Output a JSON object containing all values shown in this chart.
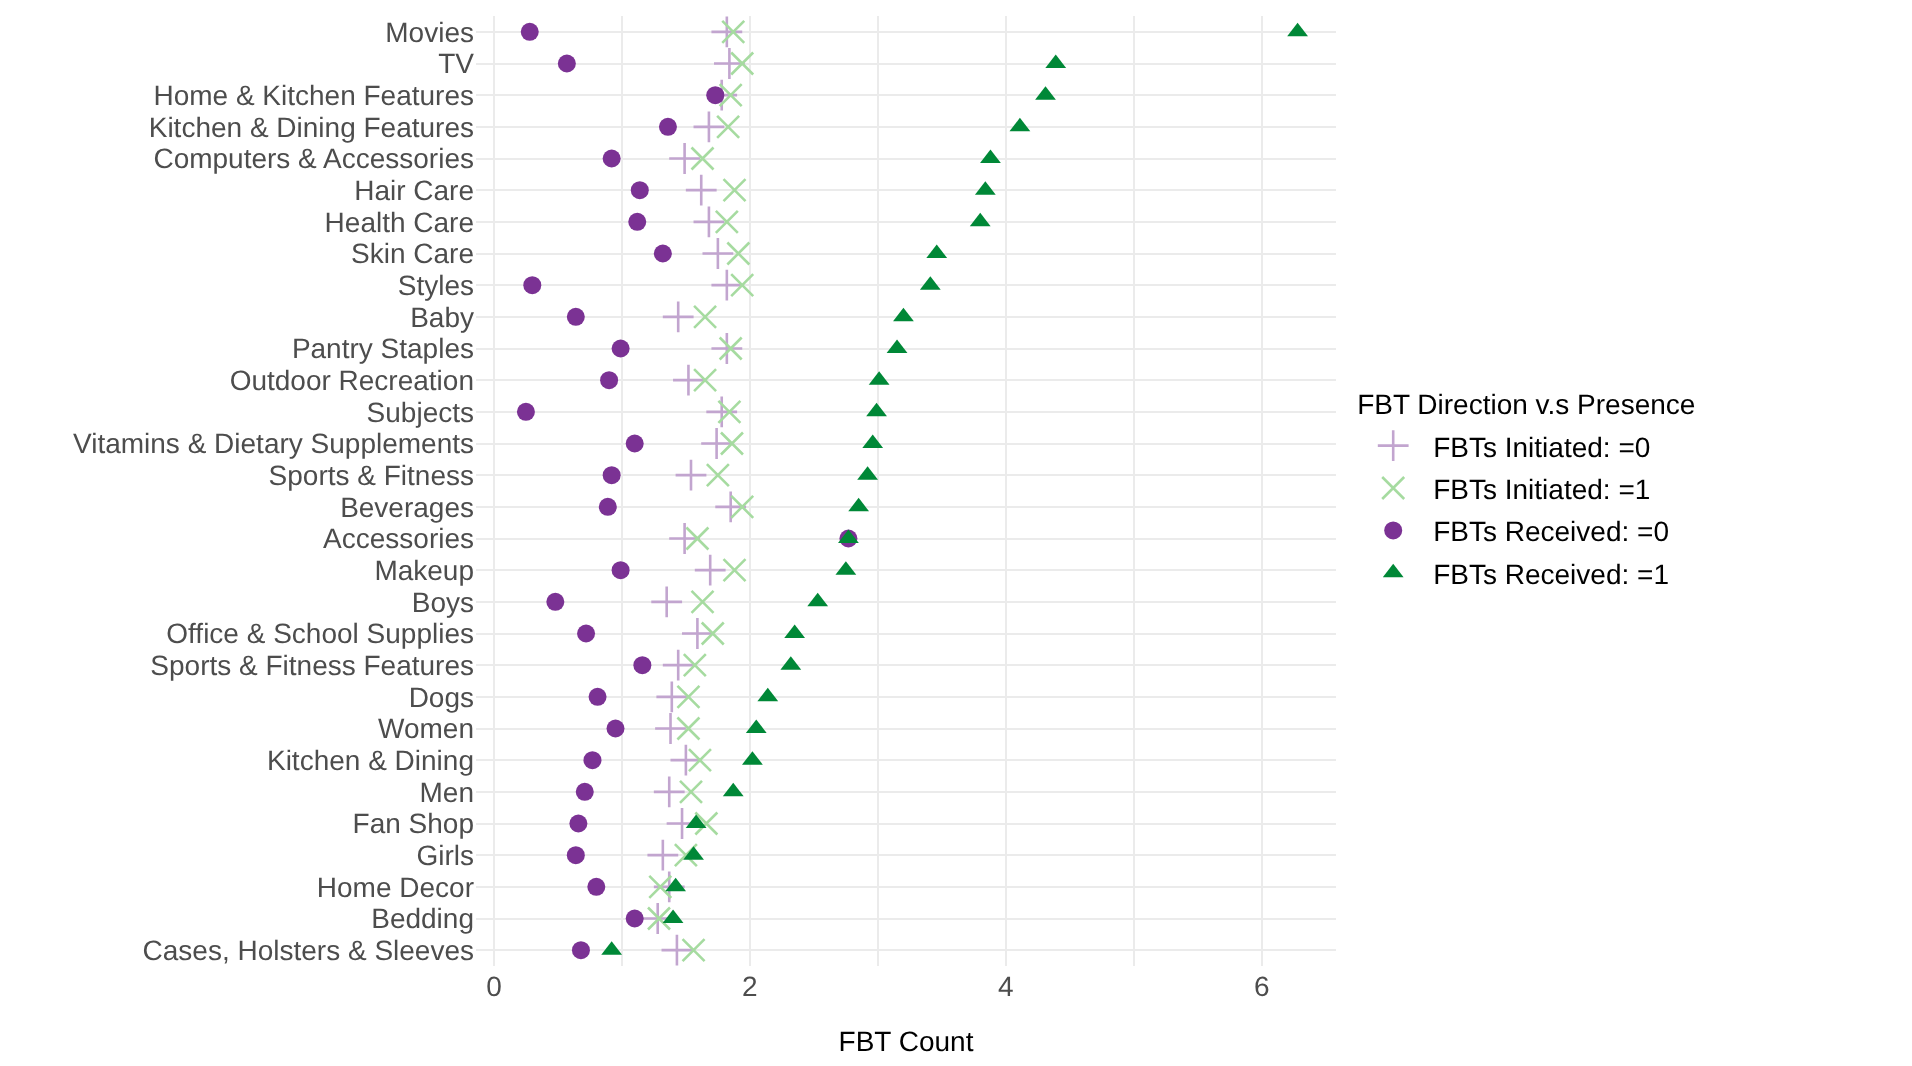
{
  "chart_data": {
    "type": "scatter",
    "xlabel": "FBT Count",
    "legend_title": "FBT Direction v.s Presence",
    "categories": [
      "Movies",
      "TV",
      "Home & Kitchen Features",
      "Kitchen & Dining Features",
      "Computers & Accessories",
      "Hair Care",
      "Health Care",
      "Skin Care",
      "Styles",
      "Baby",
      "Pantry Staples",
      "Outdoor Recreation",
      "Subjects",
      "Vitamins & Dietary Supplements",
      "Sports & Fitness",
      "Beverages",
      "Accessories",
      "Makeup",
      "Boys",
      "Office & School Supplies",
      "Sports & Fitness Features",
      "Dogs",
      "Women",
      "Kitchen & Dining",
      "Men",
      "Fan Shop",
      "Girls",
      "Home Decor",
      "Bedding",
      "Cases, Holsters & Sleeves"
    ],
    "orientation": "horizontal",
    "series": [
      {
        "name": "FBTs Initiated: =0",
        "color": "#c2a5cf",
        "marker": "cross",
        "values": [
          1.82,
          1.84,
          1.78,
          1.68,
          1.49,
          1.62,
          1.68,
          1.75,
          1.82,
          1.44,
          1.82,
          1.52,
          1.78,
          1.74,
          1.54,
          1.85,
          1.49,
          1.69,
          1.35,
          1.59,
          1.44,
          1.39,
          1.38,
          1.5,
          1.37,
          1.47,
          1.32,
          1.37,
          1.28,
          1.43
        ]
      },
      {
        "name": "FBTs Initiated: =1",
        "color": "#a6dba0",
        "marker": "x",
        "values": [
          1.87,
          1.94,
          1.85,
          1.83,
          1.63,
          1.88,
          1.82,
          1.91,
          1.94,
          1.65,
          1.85,
          1.65,
          1.84,
          1.86,
          1.75,
          1.94,
          1.59,
          1.88,
          1.63,
          1.71,
          1.57,
          1.52,
          1.52,
          1.61,
          1.54,
          1.66,
          1.5,
          1.3,
          1.29,
          1.56
        ]
      },
      {
        "name": "FBTs Received: =0",
        "color": "#7b3294",
        "marker": "circle",
        "values": [
          0.28,
          0.57,
          1.73,
          1.36,
          0.92,
          1.14,
          1.12,
          1.32,
          0.3,
          0.64,
          0.99,
          0.9,
          0.25,
          1.1,
          0.92,
          0.89,
          2.77,
          0.99,
          0.48,
          0.72,
          1.16,
          0.81,
          0.95,
          0.77,
          0.71,
          0.66,
          0.64,
          0.8,
          1.1,
          0.68
        ]
      },
      {
        "name": "FBTs Received: =1",
        "color": "#008837",
        "marker": "triangle",
        "values": [
          6.28,
          4.39,
          4.31,
          4.11,
          3.88,
          3.84,
          3.8,
          3.46,
          3.41,
          3.2,
          3.15,
          3.01,
          2.99,
          2.96,
          2.92,
          2.85,
          2.77,
          2.75,
          2.53,
          2.35,
          2.32,
          2.14,
          2.05,
          2.02,
          1.87,
          1.58,
          1.56,
          1.42,
          1.4,
          0.92
        ]
      }
    ],
    "xlim": [
      -0.14,
      6.58
    ],
    "xticks": [
      0,
      {
        "value": 1,
        "label": null
      },
      2,
      {
        "value": 3,
        "label": null
      },
      4,
      {
        "value": 5,
        "label": null
      },
      6
    ],
    "grid": true,
    "legend": "right"
  }
}
